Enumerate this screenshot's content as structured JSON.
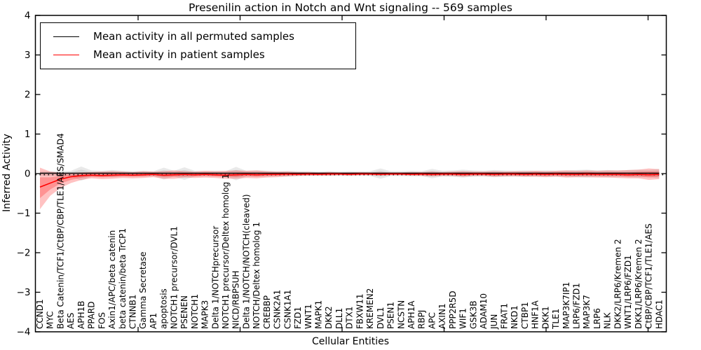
{
  "chart_data": {
    "type": "line",
    "title": "Presenilin action in Notch and Wnt signaling -- 569 samples",
    "xlabel": "Cellular Entities",
    "ylabel": "Inferred Activity",
    "ylim": [
      -4,
      4
    ],
    "y_ticks": [
      -4,
      -3,
      -2,
      -1,
      0,
      1,
      2,
      3,
      4
    ],
    "y_tick_labels": [
      "−4",
      "−3",
      "−2",
      "−1",
      "0",
      "1",
      "2",
      "3",
      "4"
    ],
    "grid": false,
    "legend_position": "upper left",
    "zero_reference_line": {
      "y": 0,
      "style": "dotted",
      "color": "#000000"
    },
    "categories": [
      "CCND1",
      "MYC",
      "Beta Catenin/TCF1/CtBP/CBP/TLE1/AES/SMAD4",
      "AES",
      "APH1B",
      "PPARD",
      "FOS",
      "Axin1/APC/beta catenin",
      "beta catenin/beta TrCP1",
      "CTNNB1",
      "Gamma Secretase",
      "AP1",
      "apoptosis",
      "NOTCH1 precursor/DVL1",
      "PSENEN",
      "NOTCH1",
      "MAPK3",
      "Delta 1/NOTCHprecursor",
      "NOTCH1 precursor/Deltex homolog 1",
      "NICD/RBPSUH",
      "Delta 1/NOTCH/NOTCH(cleaved)",
      "NOTCH/Deltex homolog 1",
      "CREBBP",
      "CSNK2A1",
      "CSNK1A1",
      "FZD1",
      "WNT1",
      "MAPK1",
      "DKK2",
      "DLL1",
      "DTX1",
      "FBXW11",
      "KREMEN2",
      "DVL1",
      "PSEN1",
      "NCSTN",
      "APH1A",
      "RBPJ",
      "APC",
      "AXIN1",
      "PPP2R5D",
      "WIF1",
      "GSK3B",
      "ADAM10",
      "JUN",
      "FRAT1",
      "NKD1",
      "CTBP1",
      "HNF1A",
      "DKK1",
      "TLE1",
      "MAP3K7IP1",
      "LRP6/FZD1",
      "MAP3K7",
      "LRP6",
      "NLK",
      "DKK2/LRP6/Kremen 2",
      "WNT1/LRP6/FZD1",
      "DKK1/LRP6/Kremen 2",
      "CtBP/CBP/TCF1/TLE1/AES",
      "HDAC1"
    ],
    "series": [
      {
        "name": "Mean activity in all permuted samples",
        "color": "#000000",
        "values": [
          0,
          0,
          0,
          0,
          0,
          0,
          0,
          0,
          0,
          0,
          0,
          0,
          0,
          0,
          0,
          0,
          0,
          0,
          0,
          0,
          0,
          0,
          0,
          0,
          0,
          0,
          0,
          0,
          0,
          0,
          0,
          0,
          0,
          0,
          0,
          0,
          0,
          0,
          0,
          0,
          0,
          0,
          0,
          0,
          0,
          0,
          0,
          0,
          0,
          0,
          0,
          0,
          0,
          0,
          0,
          0,
          0,
          0,
          0,
          0,
          0
        ]
      },
      {
        "name": "Mean activity in patient samples",
        "color": "#ff0000",
        "values": [
          -0.34,
          -0.24,
          -0.14,
          -0.08,
          -0.05,
          -0.04,
          -0.05,
          -0.04,
          -0.03,
          -0.04,
          -0.03,
          -0.02,
          -0.04,
          -0.03,
          -0.02,
          -0.03,
          -0.02,
          -0.03,
          -0.04,
          -0.03,
          -0.02,
          -0.03,
          -0.02,
          -0.02,
          -0.01,
          -0.02,
          -0.01,
          -0.02,
          -0.01,
          -0.01,
          -0.02,
          -0.01,
          -0.01,
          -0.02,
          -0.01,
          -0.01,
          -0.02,
          -0.01,
          -0.02,
          -0.01,
          -0.01,
          -0.02,
          -0.01,
          -0.01,
          -0.02,
          -0.01,
          -0.01,
          -0.02,
          -0.01,
          -0.02,
          -0.01,
          -0.02,
          -0.02,
          -0.01,
          -0.02,
          -0.02,
          -0.02,
          -0.03,
          -0.02,
          -0.03,
          -0.02
        ]
      }
    ],
    "bands": [
      {
        "series": "Mean activity in all permuted samples",
        "color": "#999999",
        "opacity": 0.22,
        "halfwidth": [
          0.05,
          0.06,
          0.06,
          0.07,
          0.18,
          0.08,
          0.07,
          0.09,
          0.07,
          0.06,
          0.07,
          0.06,
          0.15,
          0.07,
          0.16,
          0.07,
          0.06,
          0.07,
          0.06,
          0.17,
          0.07,
          0.08,
          0.07,
          0.06,
          0.07,
          0.06,
          0.06,
          0.05,
          0.06,
          0.05,
          0.06,
          0.05,
          0.06,
          0.13,
          0.06,
          0.06,
          0.07,
          0.06,
          0.12,
          0.07,
          0.08,
          0.1,
          0.08,
          0.07,
          0.09,
          0.08,
          0.07,
          0.08,
          0.07,
          0.08,
          0.07,
          0.08,
          0.09,
          0.1,
          0.08,
          0.09,
          0.08,
          0.09,
          0.1,
          0.09,
          0.12
        ]
      },
      {
        "series": "Mean activity in patient samples",
        "color": "#ff0000",
        "opacity": 0.24,
        "upper": [
          0.15,
          0.05,
          0.02,
          0.02,
          0.03,
          0.04,
          0.05,
          0.06,
          0.05,
          0.04,
          0.06,
          0.05,
          0.06,
          0.08,
          0.06,
          0.05,
          0.07,
          0.06,
          0.07,
          0.08,
          0.07,
          0.08,
          0.06,
          0.05,
          0.05,
          0.04,
          0.04,
          0.03,
          0.04,
          0.03,
          0.03,
          0.04,
          0.03,
          0.04,
          0.03,
          0.03,
          0.04,
          0.04,
          0.05,
          0.04,
          0.05,
          0.06,
          0.05,
          0.05,
          0.06,
          0.05,
          0.06,
          0.06,
          0.07,
          0.06,
          0.07,
          0.08,
          0.07,
          0.08,
          0.07,
          0.08,
          0.08,
          0.09,
          0.1,
          0.13,
          0.11
        ],
        "lower": [
          -0.9,
          -0.56,
          -0.36,
          -0.24,
          -0.16,
          -0.12,
          -0.14,
          -0.13,
          -0.11,
          -0.12,
          -0.11,
          -0.09,
          -0.13,
          -0.13,
          -0.1,
          -0.11,
          -0.1,
          -0.11,
          -0.13,
          -0.13,
          -0.11,
          -0.12,
          -0.1,
          -0.09,
          -0.07,
          -0.06,
          -0.05,
          -0.05,
          -0.05,
          -0.04,
          -0.05,
          -0.04,
          -0.04,
          -0.05,
          -0.04,
          -0.04,
          -0.05,
          -0.06,
          -0.07,
          -0.06,
          -0.06,
          -0.08,
          -0.06,
          -0.06,
          -0.08,
          -0.07,
          -0.07,
          -0.08,
          -0.08,
          -0.09,
          -0.08,
          -0.1,
          -0.09,
          -0.09,
          -0.1,
          -0.1,
          -0.11,
          -0.12,
          -0.12,
          -0.16,
          -0.14
        ]
      }
    ]
  },
  "colors": {
    "patient_line": "#ff0000",
    "permuted_line": "#000000",
    "frame": "#000000",
    "background": "#ffffff"
  }
}
